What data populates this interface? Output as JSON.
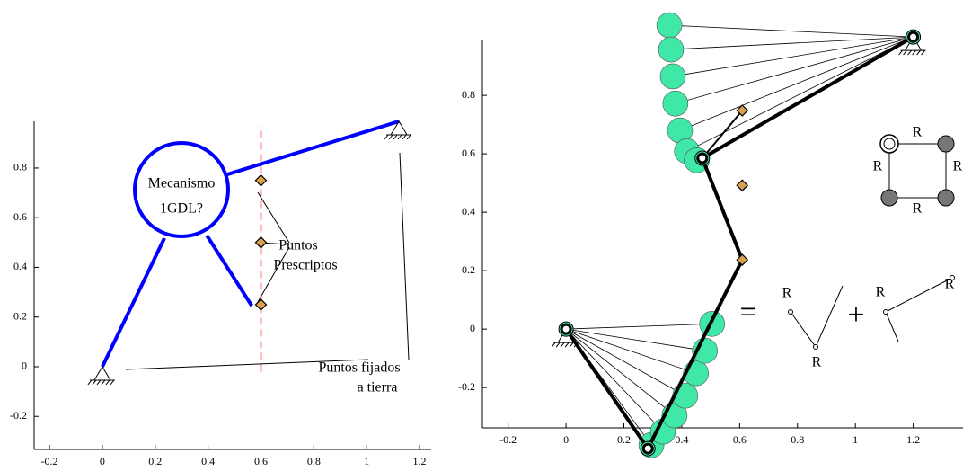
{
  "chart_data": [
    {
      "type": "line",
      "xlim": [
        -0.258,
        1.244
      ],
      "ylim": [
        -0.333,
        0.988
      ],
      "xticks": [
        -0.2,
        0,
        0.2,
        0.4,
        0.6,
        0.8,
        1,
        1.2
      ],
      "yticks": [
        -0.2,
        0,
        0.2,
        0.4,
        0.6,
        0.8
      ],
      "series": [
        {
          "kind": "line",
          "color": "#ff0000",
          "dash": true,
          "width": 1.5,
          "x": [
            0.6,
            0.6
          ],
          "y": [
            -0.02,
            0.97
          ]
        },
        {
          "kind": "line",
          "color": "#0000ff",
          "width": 4,
          "x": [
            0,
            0.235
          ],
          "y": [
            0,
            0.518
          ]
        },
        {
          "kind": "line",
          "color": "#0000ff",
          "width": 4,
          "x": [
            0.463,
            1.122
          ],
          "y": [
            0.771,
            0.988
          ]
        },
        {
          "kind": "line",
          "color": "#0000ff",
          "width": 4,
          "x": [
            0.395,
            0.565
          ],
          "y": [
            0.529,
            0.246
          ]
        },
        {
          "kind": "points",
          "marker": "ground",
          "color": "#000000",
          "x": [
            0,
            1.122
          ],
          "y": [
            0,
            0.988
          ]
        },
        {
          "kind": "points",
          "marker": "diamond",
          "color": "#d9a050",
          "x": [
            0.6,
            0.6,
            0.6
          ],
          "y": [
            0.75,
            0.5,
            0.25
          ]
        }
      ],
      "annotations": [
        "Mecanismo",
        "1GDL?",
        "Puntos",
        "Prescriptos",
        "Puntos fijados",
        "a tierra"
      ]
    },
    {
      "type": "line",
      "xlim": [
        -0.289,
        1.372
      ],
      "ylim": [
        -0.338,
        0.988
      ],
      "xticks": [
        -0.2,
        0,
        0.2,
        0.4,
        0.6,
        0.8,
        1,
        1.2
      ],
      "yticks": [
        -0.2,
        0,
        0.2,
        0.4,
        0.6,
        0.8
      ],
      "series": [
        {
          "kind": "fan",
          "color": "#000000",
          "pivot": {
            "x": 1.2,
            "y": 1.0
          },
          "x": [
            0.357,
            0.363,
            0.369,
            0.378,
            0.394,
            0.418,
            0.452
          ],
          "y": [
            1.04,
            0.957,
            0.865,
            0.772,
            0.68,
            0.609,
            0.578
          ]
        },
        {
          "kind": "fan",
          "color": "#000000",
          "pivot": {
            "x": 0,
            "y": 0
          },
          "x": [
            0.295,
            0.335,
            0.375,
            0.412,
            0.449,
            0.48,
            0.505
          ],
          "y": [
            -0.397,
            -0.351,
            -0.295,
            -0.228,
            -0.151,
            -0.074,
            0.018
          ]
        },
        {
          "kind": "points",
          "marker": "disc",
          "color": "#40e8a8",
          "x": [
            0.357,
            0.363,
            0.369,
            0.378,
            0.394,
            0.418,
            0.452
          ],
          "y": [
            1.04,
            0.957,
            0.865,
            0.772,
            0.68,
            0.609,
            0.578
          ]
        },
        {
          "kind": "points",
          "marker": "disc",
          "color": "#40e8a8",
          "x": [
            0.295,
            0.335,
            0.375,
            0.412,
            0.449,
            0.48,
            0.505
          ],
          "y": [
            -0.397,
            -0.351,
            -0.295,
            -0.228,
            -0.151,
            -0.074,
            0.018
          ]
        },
        {
          "kind": "line",
          "color": "#000000",
          "width": 4,
          "x": [
            0,
            0.283,
            0.609
          ],
          "y": [
            0,
            -0.409,
            0.237
          ]
        },
        {
          "kind": "line",
          "color": "#000000",
          "width": 4,
          "x": [
            1.2,
            0.471,
            0.609
          ],
          "y": [
            1.0,
            0.585,
            0.237
          ]
        },
        {
          "kind": "line",
          "color": "#000000",
          "width": 2,
          "x": [
            0.471,
            0.609
          ],
          "y": [
            0.585,
            0.748
          ]
        },
        {
          "kind": "points",
          "marker": "ground",
          "color": "#000000",
          "x": [
            0,
            1.2
          ],
          "y": [
            0,
            1.0
          ]
        },
        {
          "kind": "points",
          "marker": "pivot",
          "color": "#000000",
          "x": [
            0,
            1.2,
            0.471,
            0.283
          ],
          "y": [
            0,
            1.0,
            0.585,
            -0.409
          ]
        },
        {
          "kind": "points",
          "marker": "diamond",
          "color": "#d9a050",
          "x": [
            0.609,
            0.609,
            0.609
          ],
          "y": [
            0.748,
            0.492,
            0.237
          ]
        }
      ],
      "annotations": [
        "R",
        "R",
        "R",
        "R",
        "=",
        "R",
        "R",
        "+",
        "R",
        "R"
      ]
    }
  ]
}
